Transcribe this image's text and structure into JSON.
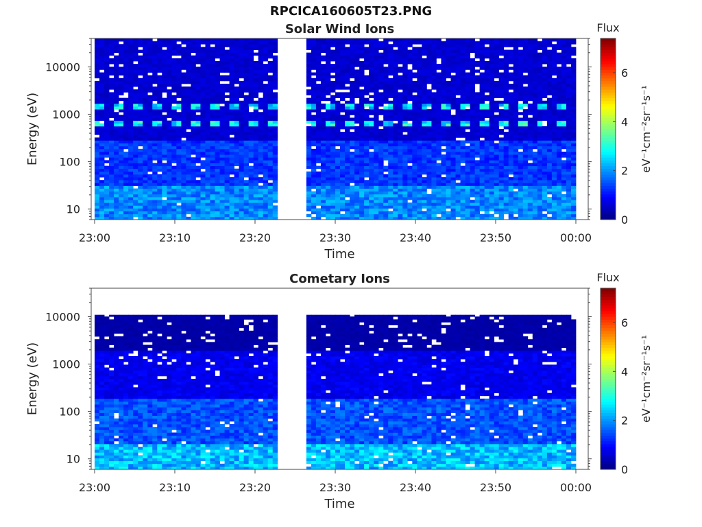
{
  "figure": {
    "title": "RPCICA160605T23.PNG"
  },
  "chart_data": [
    {
      "type": "heatmap",
      "title": "Solar Wind Ions",
      "xlabel": "Time",
      "ylabel": "Energy (eV)",
      "x_ticks": [
        "23:00",
        "23:10",
        "23:20",
        "23:30",
        "23:40",
        "23:50",
        "00:00"
      ],
      "x_range": [
        "23:00",
        "00:00"
      ],
      "y_scale": "log",
      "y_ticks": [
        10,
        100,
        1000,
        10000
      ],
      "y_range": [
        6,
        40000
      ],
      "data_gap": [
        "23:23",
        "23:26"
      ],
      "colorbar": {
        "title": "Flux",
        "label": "eV⁻¹cm⁻²sr⁻¹s⁻¹",
        "ticks": [
          0,
          2,
          4,
          6
        ],
        "range": [
          0,
          7.4
        ],
        "colormap": "jet"
      },
      "features": [
        {
          "energy_eV": 650,
          "flux_peak": 2.8,
          "description": "periodic proton band"
        },
        {
          "energy_eV": 1500,
          "flux_peak": 2.6,
          "description": "periodic alpha band"
        }
      ],
      "background_flux": {
        "low_energy_eV_below_30": 1.9,
        "high_energy": 0.3
      }
    },
    {
      "type": "heatmap",
      "title": "Cometary Ions",
      "xlabel": "Time",
      "ylabel": "Energy (eV)",
      "x_ticks": [
        "23:00",
        "23:10",
        "23:20",
        "23:30",
        "23:40",
        "23:50",
        "00:00"
      ],
      "x_range": [
        "23:00",
        "00:00"
      ],
      "y_scale": "log",
      "y_ticks": [
        10,
        100,
        1000,
        10000
      ],
      "y_range": [
        6,
        40000
      ],
      "data_gap": [
        "23:23",
        "23:26"
      ],
      "colorbar": {
        "title": "Flux",
        "label": "eV⁻¹cm⁻²sr⁻¹s⁻¹",
        "ticks": [
          0,
          2,
          4,
          6
        ],
        "range": [
          0,
          7.4
        ],
        "colormap": "jet"
      },
      "data_upper_energy_eV": 11000,
      "background_flux": {
        "low_energy_eV_below_20": 2.3,
        "high_energy": 0.3
      }
    }
  ]
}
